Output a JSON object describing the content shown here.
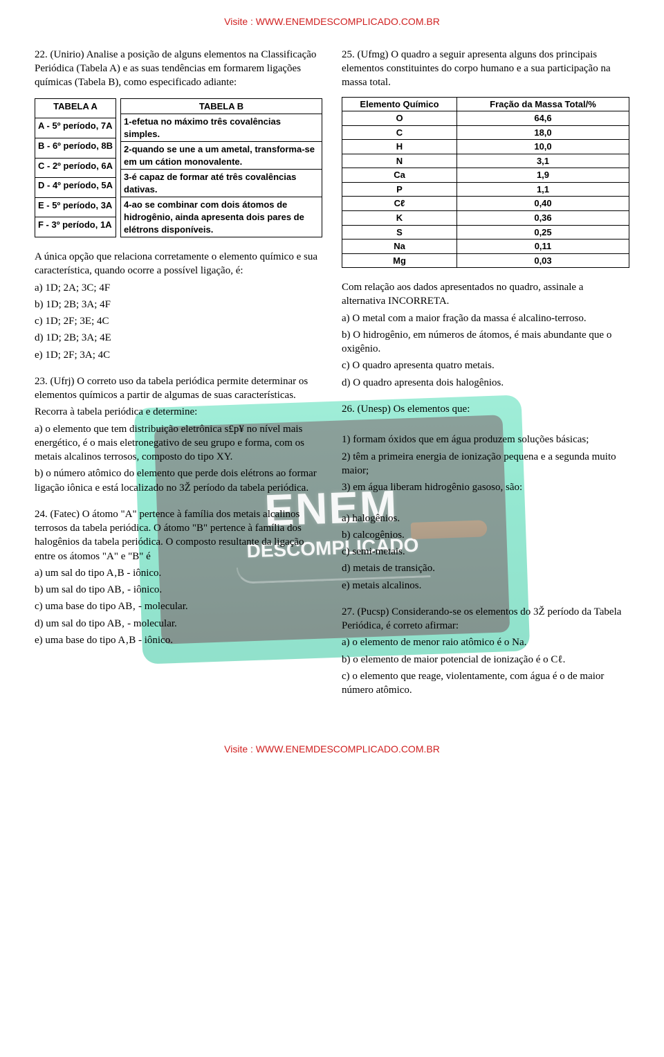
{
  "header_footer": {
    "text": "Visite : WWW.ENEMDESCOMPLICADO.COM.BR",
    "color": "#d02020"
  },
  "watermark": {
    "title1": "ENEM",
    "title2": "DESCOMPLICADO",
    "outer_bg": "#47dcb1",
    "inner_bg": "#274b41"
  },
  "q22": {
    "prompt": "22. (Unirio) Analise a posição de alguns elementos na Classificação Periódica (Tabela A) e as suas tendências em formarem ligações químicas (Tabela B), como especificado adiante:",
    "tabelaA": {
      "title": "TABELA A",
      "rows": [
        "A - 5º período, 7A",
        "B - 6º período, 8B",
        "C - 2º período, 6A",
        "D - 4º período, 5A",
        "E - 5º período, 3A",
        "F - 3º período, 1A"
      ]
    },
    "tabelaB": {
      "title": "TABELA B",
      "rows": [
        "1-efetua no máximo três covalências simples.",
        "2-quando se une a um ametal, transforma-se em um cátion monovalente.",
        "3-é capaz de formar até três covalências dativas.",
        "4-ao se combinar com dois átomos de hidrogênio, ainda apresenta dois pares de elétrons disponíveis."
      ]
    },
    "mid": "A única opção que relaciona corretamente o elemento químico e sua característica, quando ocorre a possível ligação, é:",
    "opts": {
      "a": "a) 1D; 2A; 3C; 4F",
      "b": "b) 1D; 2B; 3A; 4F",
      "c": "c) 1D; 2F; 3E; 4C",
      "d": "d) 1D; 2B; 3A; 4E",
      "e": "e) 1D; 2F; 3A; 4C"
    }
  },
  "q23": {
    "text1": "23. (Ufrj) O correto uso da tabela periódica permite determinar os elementos químicos a partir de algumas de suas características.",
    "text2": "Recorra à tabela periódica e determine:",
    "a": "a) o elemento que tem distribuição eletrônica s£p¥ no nível mais energético, é o mais eletronegativo de seu grupo e forma, com os metais alcalinos terrosos, composto do tipo XY.",
    "b": "b) o número atômico do elemento que perde dois elétrons ao formar ligação iônica e está localizado no 3Ž período da tabela periódica."
  },
  "q24": {
    "prompt": "24. (Fatec) O átomo \"A\" pertence à família dos metais alcalinos terrosos da tabela periódica. O átomo \"B\" pertence à família dos halogênios da tabela periódica. O composto resultante da ligação entre os átomos \"A\" e \"B\" é",
    "a": "a) um sal do tipo A‚B - iônico.",
    "b": "b) um sal do tipo AB‚ - iônico.",
    "c": "c) uma base do tipo AB‚ - molecular.",
    "d": "d) um sal do tipo AB‚ - molecular.",
    "e": "e) uma base do tipo A‚B - iônico."
  },
  "q25": {
    "prompt": "25. (Ufmg) O quadro a seguir apresenta alguns dos principais elementos constituintes do corpo humano e a sua participação na massa total.",
    "table": {
      "col1": "Elemento Químico",
      "col2": "Fração da Massa Total/%",
      "rows": [
        {
          "e": "O",
          "v": "64,6"
        },
        {
          "e": "C",
          "v": "18,0"
        },
        {
          "e": "H",
          "v": "10,0"
        },
        {
          "e": "N",
          "v": "3,1"
        },
        {
          "e": "Ca",
          "v": "1,9"
        },
        {
          "e": "P",
          "v": "1,1"
        },
        {
          "e": "Cℓ",
          "v": "0,40"
        },
        {
          "e": "K",
          "v": "0,36"
        },
        {
          "e": "S",
          "v": "0,25"
        },
        {
          "e": "Na",
          "v": "0,11"
        },
        {
          "e": "Mg",
          "v": "0,03"
        }
      ]
    },
    "mid": "Com relação aos dados apresentados no quadro, assinale a alternativa INCORRETA.",
    "a": "a) O metal com a maior fração da massa é alcalino-terroso.",
    "b": "b) O hidrogênio, em números de átomos, é mais abundante que o oxigênio.",
    "c": "c) O quadro apresenta quatro metais.",
    "d": "d) O quadro apresenta dois halogênios."
  },
  "q26": {
    "prompt": "26. (Unesp) Os elementos que:",
    "i1": "1) formam óxidos que em água produzem soluções básicas;",
    "i2": "2) têm a primeira energia de ionização pequena e a segunda muito maior;",
    "i3": "3) em água liberam hidrogênio gasoso, são:",
    "a": "a) halogênios.",
    "b": "b) calcogênios.",
    "c": "c) semi-metais.",
    "d": "d) metais de transição.",
    "e": "e) metais alcalinos."
  },
  "q27": {
    "prompt": "27. (Pucsp) Considerando-se os elementos do 3Ž período da Tabela Periódica, é correto afirmar:",
    "a": "a) o elemento de menor raio atômico é o Na.",
    "b": "b) o elemento de maior potencial de ionização é o Cℓ.",
    "c": "c) o elemento que reage, violentamente, com água é o de maior número atômico."
  }
}
